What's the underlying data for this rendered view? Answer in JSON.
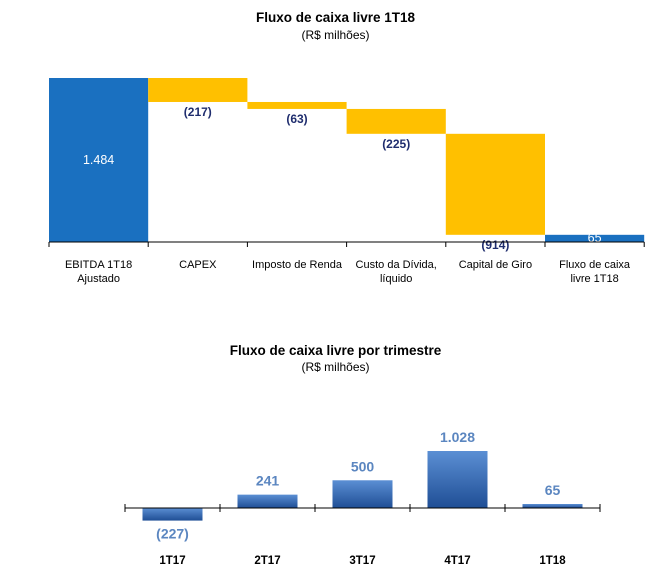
{
  "chart_data": [
    {
      "type": "waterfall",
      "title": "Fluxo de caixa livre 1T18",
      "subtitle": "(R$ milhões)",
      "ylim": [
        0,
        1484
      ],
      "colors": {
        "total": "#1a70c0",
        "negative": "#ffc000",
        "axis": "#000000"
      },
      "steps": [
        {
          "label": [
            "EBITDA 1T18",
            "Ajustado"
          ],
          "value": 1484,
          "kind": "total",
          "display": "1.484"
        },
        {
          "label": [
            "CAPEX"
          ],
          "value": -217,
          "kind": "negative",
          "display": "(217)"
        },
        {
          "label": [
            "Imposto de Renda"
          ],
          "value": -63,
          "kind": "negative",
          "display": "(63)"
        },
        {
          "label": [
            "Custo da Dívida,",
            "líquido"
          ],
          "value": -225,
          "kind": "negative",
          "display": "(225)"
        },
        {
          "label": [
            "Capital de Giro"
          ],
          "value": -914,
          "kind": "negative",
          "display": "(914)"
        },
        {
          "label": [
            "Fluxo de caixa",
            "livre 1T18"
          ],
          "value": 65,
          "kind": "total",
          "display": "65"
        }
      ]
    },
    {
      "type": "bar",
      "title": "Fluxo de caixa livre por trimestre",
      "subtitle": "(R$ milhões)",
      "categories": [
        "1T17",
        "2T17",
        "3T17",
        "4T17",
        "1T18"
      ],
      "values": [
        -227,
        241,
        500,
        1028,
        65
      ],
      "value_labels": [
        "(227)",
        "241",
        "500",
        "1.028",
        "65"
      ],
      "colors": {
        "bar_top": "#5b8fd4",
        "bar_bottom": "#1f4e95",
        "label": "#5b86c0"
      }
    }
  ]
}
